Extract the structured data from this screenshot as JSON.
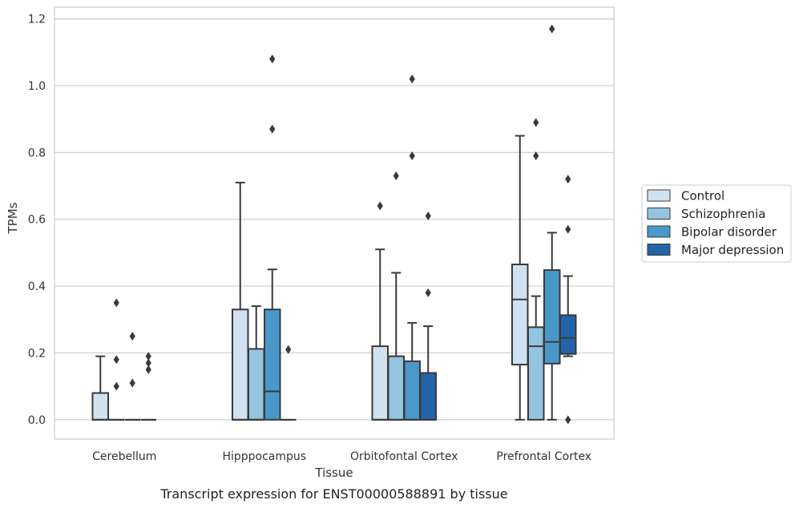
{
  "caption": "Transcript expression for ENST00000588891 by tissue",
  "chart_data": {
    "type": "box",
    "xlabel": "Tissue",
    "ylabel": "TPMs",
    "ylim": [
      -0.058,
      1.235
    ],
    "yticks": [
      0.0,
      0.2,
      0.4,
      0.6,
      0.8,
      1.0,
      1.2
    ],
    "ytick_labels": [
      "0.0",
      "0.2",
      "0.4",
      "0.6",
      "0.8",
      "1.0",
      "1.2"
    ],
    "grid": "horizontal",
    "legend_position": "right",
    "categories": [
      "Cerebellum",
      "Hipppocampus",
      "Orbitofontal Cortex",
      "Prefrontal Cortex"
    ],
    "series": [
      {
        "name": "Control",
        "color": "#d0e1f2",
        "boxes": [
          {
            "q1": 0.0,
            "median": 0.0,
            "q3": 0.08,
            "whisker_low": 0.0,
            "whisker_high": 0.19,
            "outliers": []
          },
          {
            "q1": 0.0,
            "median": 0.0,
            "q3": 0.33,
            "whisker_low": 0.0,
            "whisker_high": 0.71,
            "outliers": []
          },
          {
            "q1": 0.0,
            "median": 0.0,
            "q3": 0.22,
            "whisker_low": 0.0,
            "whisker_high": 0.51,
            "outliers": [
              0.64
            ]
          },
          {
            "q1": 0.165,
            "median": 0.36,
            "q3": 0.465,
            "whisker_low": 0.0,
            "whisker_high": 0.85,
            "outliers": []
          }
        ]
      },
      {
        "name": "Schizophrenia",
        "color": "#94c4df",
        "boxes": [
          {
            "q1": 0.0,
            "median": 0.0,
            "q3": 0.0,
            "whisker_low": 0.0,
            "whisker_high": 0.0,
            "outliers": [
              0.35,
              0.18,
              0.1
            ]
          },
          {
            "q1": 0.0,
            "median": 0.0,
            "q3": 0.212,
            "whisker_low": 0.0,
            "whisker_high": 0.34,
            "outliers": []
          },
          {
            "q1": 0.0,
            "median": 0.0,
            "q3": 0.19,
            "whisker_low": 0.0,
            "whisker_high": 0.44,
            "outliers": [
              0.73
            ]
          },
          {
            "q1": 0.0,
            "median": 0.22,
            "q3": 0.277,
            "whisker_low": 0.0,
            "whisker_high": 0.37,
            "outliers": [
              0.89,
              0.79
            ]
          }
        ]
      },
      {
        "name": "Bipolar disorder",
        "color": "#4a98c9",
        "boxes": [
          {
            "q1": 0.0,
            "median": 0.0,
            "q3": 0.0,
            "whisker_low": 0.0,
            "whisker_high": 0.0,
            "outliers": [
              0.25,
              0.11
            ]
          },
          {
            "q1": 0.0,
            "median": 0.085,
            "q3": 0.33,
            "whisker_low": 0.0,
            "whisker_high": 0.45,
            "outliers": [
              1.08,
              0.87
            ]
          },
          {
            "q1": 0.0,
            "median": 0.0,
            "q3": 0.175,
            "whisker_low": 0.0,
            "whisker_high": 0.29,
            "outliers": [
              1.02,
              0.79
            ]
          },
          {
            "q1": 0.168,
            "median": 0.233,
            "q3": 0.448,
            "whisker_low": 0.0,
            "whisker_high": 0.56,
            "outliers": [
              1.17
            ]
          }
        ]
      },
      {
        "name": "Major depression",
        "color": "#2464a8",
        "boxes": [
          {
            "q1": 0.0,
            "median": 0.0,
            "q3": 0.0,
            "whisker_low": 0.0,
            "whisker_high": 0.0,
            "outliers": [
              0.19,
              0.17,
              0.15
            ]
          },
          {
            "q1": 0.0,
            "median": 0.0,
            "q3": 0.0,
            "whisker_low": 0.0,
            "whisker_high": 0.0,
            "outliers": [
              0.21
            ]
          },
          {
            "q1": 0.0,
            "median": 0.0,
            "q3": 0.14,
            "whisker_low": 0.0,
            "whisker_high": 0.28,
            "outliers": [
              0.61,
              0.38
            ]
          },
          {
            "q1": 0.197,
            "median": 0.245,
            "q3": 0.313,
            "whisker_low": 0.19,
            "whisker_high": 0.43,
            "outliers": [
              0.72,
              0.57,
              0.0
            ]
          }
        ]
      }
    ]
  }
}
